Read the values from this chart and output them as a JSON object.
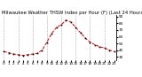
{
  "title": "Milwaukee Weather THSW Index per Hour (F) (Last 24 Hours)",
  "hours": [
    0,
    1,
    2,
    3,
    4,
    5,
    6,
    7,
    8,
    9,
    10,
    11,
    12,
    13,
    14,
    15,
    16,
    17,
    18,
    19,
    20,
    21,
    22,
    23
  ],
  "values": [
    38,
    36,
    34,
    33,
    32,
    33,
    34,
    35,
    40,
    52,
    65,
    74,
    78,
    85,
    82,
    74,
    66,
    58,
    52,
    48,
    45,
    43,
    40,
    38
  ],
  "line_color": "#dd0000",
  "marker_color": "#000000",
  "bg_color": "#ffffff",
  "grid_color": "#999999",
  "title_color": "#000000",
  "title_fontsize": 3.8,
  "tick_fontsize": 3.0,
  "ylim": [
    25,
    92
  ],
  "yticks": [
    30,
    40,
    50,
    60,
    70,
    80,
    90
  ],
  "xgrid_hours": [
    0,
    3,
    6,
    9,
    12,
    15,
    18,
    21
  ]
}
